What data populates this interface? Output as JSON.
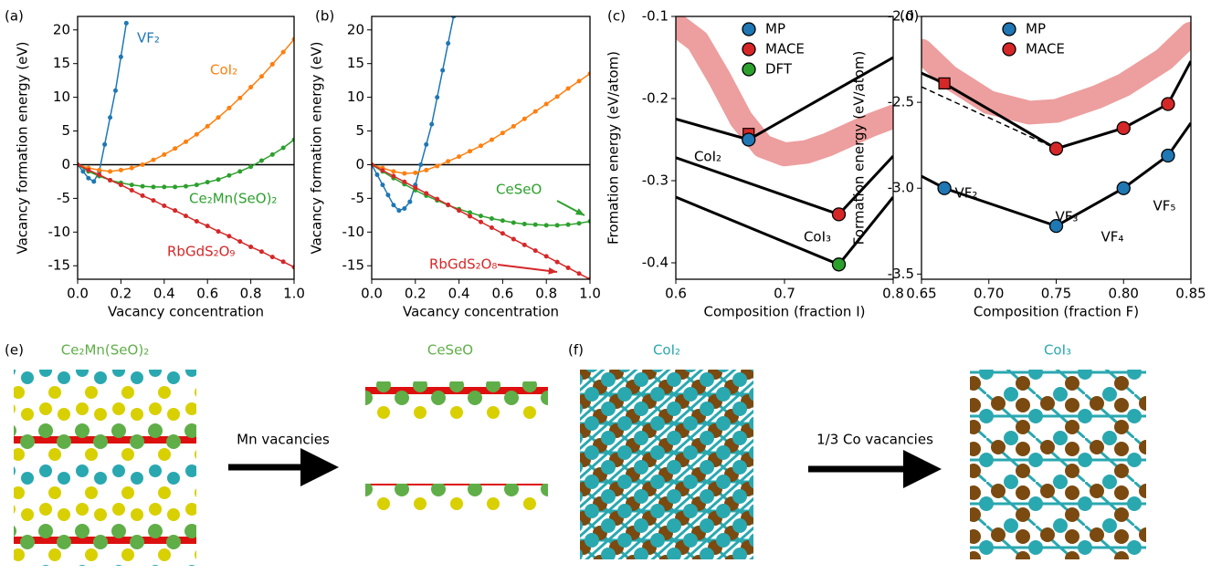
{
  "chart_data": [
    {
      "type": "line",
      "panel": "(a)",
      "xlabel": "Vacancy concentration",
      "ylabel": "Vacancy formation energy (eV)",
      "xlim": [
        0,
        1
      ],
      "ylim": [
        -17,
        22
      ],
      "xticks": [
        {
          "value": 0,
          "label": "0.0"
        },
        0.2,
        0.4,
        0.6,
        0.8,
        {
          "value": 1,
          "label": "1.0"
        }
      ],
      "yticks": [
        -15,
        -10,
        -5,
        0,
        5,
        10,
        15,
        20
      ],
      "hlines": [
        0
      ],
      "series": [
        {
          "name": "VF₂",
          "color": "#1f77b4",
          "style": "line-dots",
          "x": [
            0,
            0.025,
            0.05,
            0.075,
            0.1,
            0.125,
            0.15,
            0.175,
            0.2,
            0.225
          ],
          "values": [
            0,
            -1,
            -2,
            -2.5,
            -1,
            3,
            7,
            11,
            16,
            21
          ]
        },
        {
          "name": "CoI₂",
          "color": "#ff7f0e",
          "style": "line-dots",
          "x": [
            0,
            0.05,
            0.1,
            0.15,
            0.2,
            0.25,
            0.3,
            0.35,
            0.4,
            0.45,
            0.5,
            0.55,
            0.6,
            0.65,
            0.7,
            0.75,
            0.8,
            0.85,
            0.9,
            0.95,
            1
          ],
          "values": [
            0,
            -0.5,
            -0.8,
            -1,
            -0.8,
            -0.5,
            0,
            0.7,
            1.5,
            2.4,
            3.4,
            4.5,
            5.7,
            7,
            8.4,
            9.9,
            11.5,
            13.1,
            14.9,
            16.7,
            18.6
          ]
        },
        {
          "name": "Ce₂Mn(SeO)₂",
          "color": "#2ca02c",
          "style": "line-dots",
          "x": [
            0,
            0.05,
            0.1,
            0.15,
            0.2,
            0.25,
            0.3,
            0.35,
            0.4,
            0.45,
            0.5,
            0.55,
            0.6,
            0.65,
            0.7,
            0.75,
            0.8,
            0.85,
            0.9,
            0.95,
            1
          ],
          "values": [
            0,
            -1,
            -1.7,
            -2.3,
            -2.7,
            -3,
            -3.2,
            -3.3,
            -3.3,
            -3.3,
            -3.2,
            -3,
            -2.6,
            -2.2,
            -1.6,
            -1,
            -0.3,
            0.6,
            1.5,
            2.5,
            3.7
          ]
        },
        {
          "name": "RbGdS₂O₉",
          "color": "#d62728",
          "style": "line-dots",
          "x": [
            0,
            0.05,
            0.1,
            0.15,
            0.2,
            0.25,
            0.3,
            0.35,
            0.4,
            0.45,
            0.5,
            0.55,
            0.6,
            0.65,
            0.7,
            0.75,
            0.8,
            0.85,
            0.9,
            0.95,
            1
          ],
          "values": [
            0,
            -0.8,
            -1.5,
            -2.3,
            -3,
            -3.8,
            -4.6,
            -5.3,
            -6.1,
            -6.8,
            -7.6,
            -8.4,
            -9.1,
            -9.9,
            -10.6,
            -11.4,
            -12.2,
            -12.9,
            -13.7,
            -14.4,
            -15.2
          ]
        }
      ]
    },
    {
      "type": "line",
      "panel": "(b)",
      "xlabel": "Vacancy concentration",
      "ylabel": "Vacancy formation energy (eV)",
      "xlim": [
        0,
        1
      ],
      "ylim": [
        -17,
        22
      ],
      "xticks": [
        {
          "value": 0,
          "label": "0.0"
        },
        0.2,
        0.4,
        0.6,
        0.8,
        {
          "value": 1,
          "label": "1.0"
        }
      ],
      "yticks": [
        -15,
        -10,
        -5,
        0,
        5,
        10,
        15,
        20
      ],
      "hlines": [
        0
      ],
      "series": [
        {
          "color": "#1f77b4",
          "style": "line-dots",
          "x": [
            0,
            0.025,
            0.05,
            0.075,
            0.1,
            0.125,
            0.15,
            0.175,
            0.2,
            0.225,
            0.25,
            0.275,
            0.3,
            0.325,
            0.35,
            0.375
          ],
          "values": [
            0,
            -1.5,
            -3,
            -4.5,
            -6,
            -6.8,
            -6.5,
            -5.5,
            -3,
            0,
            3,
            6,
            10,
            14,
            18,
            22
          ]
        },
        {
          "color": "#ff7f0e",
          "style": "line-dots",
          "x": [
            0,
            0.05,
            0.1,
            0.15,
            0.2,
            0.25,
            0.3,
            0.35,
            0.4,
            0.45,
            0.5,
            0.55,
            0.6,
            0.65,
            0.7,
            0.75,
            0.8,
            0.85,
            0.9,
            0.95,
            1
          ],
          "values": [
            0,
            -0.5,
            -1,
            -1.3,
            -1.2,
            -0.8,
            -0.2,
            0.5,
            1.2,
            2,
            2.8,
            3.7,
            4.7,
            5.7,
            6.8,
            7.9,
            9,
            10.1,
            11.3,
            12.4,
            13.5
          ]
        },
        {
          "name": "CeSeO",
          "color": "#2ca02c",
          "style": "line-dots",
          "x": [
            0,
            0.05,
            0.1,
            0.15,
            0.2,
            0.25,
            0.3,
            0.35,
            0.4,
            0.45,
            0.5,
            0.55,
            0.6,
            0.65,
            0.7,
            0.75,
            0.8,
            0.85,
            0.9,
            0.95,
            1
          ],
          "values": [
            0,
            -1,
            -2,
            -2.9,
            -3.8,
            -4.6,
            -5.3,
            -6,
            -6.6,
            -7.1,
            -7.6,
            -8,
            -8.3,
            -8.6,
            -8.8,
            -8.9,
            -9,
            -9,
            -8.9,
            -8.7,
            -8.4
          ]
        },
        {
          "name": "RbGdS₂O₈",
          "color": "#d62728",
          "style": "line-dots",
          "x": [
            0,
            0.05,
            0.1,
            0.15,
            0.2,
            0.25,
            0.3,
            0.35,
            0.4,
            0.45,
            0.5,
            0.55,
            0.6,
            0.65,
            0.7,
            0.75,
            0.8,
            0.85,
            0.9,
            0.95,
            1
          ],
          "values": [
            0,
            -0.85,
            -1.7,
            -2.55,
            -3.4,
            -4.25,
            -5.1,
            -5.95,
            -6.8,
            -7.65,
            -8.5,
            -9.35,
            -10.2,
            -11.05,
            -11.9,
            -12.75,
            -13.6,
            -14.45,
            -15.3,
            -16.15,
            -17
          ]
        }
      ]
    },
    {
      "type": "scatter",
      "panel": "(c)",
      "xlabel": "Composition (fraction I)",
      "ylabel": "Fromation energy (eV/atom)",
      "xlim": [
        0.6,
        0.8
      ],
      "ylim": [
        -0.42,
        -0.1
      ],
      "xticks": [
        0.6,
        0.7,
        0.8
      ],
      "yticks": [
        -0.4,
        -0.3,
        -0.2,
        -0.1
      ],
      "legend": "upper center",
      "annotations": [
        "CoI₂",
        "CoI₃"
      ],
      "series": [
        {
          "color": "#d62728",
          "style": "band",
          "x": [
            0.6,
            0.62,
            0.64,
            0.66,
            0.68,
            0.7,
            0.72,
            0.74,
            0.76,
            0.78,
            0.8
          ],
          "values": [
            -0.11,
            -0.13,
            -0.175,
            -0.225,
            -0.258,
            -0.268,
            -0.265,
            -0.256,
            -0.244,
            -0.232,
            -0.222
          ]
        },
        {
          "color": "#000000",
          "style": "line",
          "x": [
            0.6,
            0.667,
            0.8
          ],
          "values": [
            -0.225,
            -0.25,
            -0.15
          ]
        },
        {
          "color": "#000000",
          "style": "line",
          "x": [
            0.6,
            0.75,
            0.8
          ],
          "values": [
            -0.272,
            -0.341,
            -0.27
          ]
        },
        {
          "color": "#000000",
          "style": "line",
          "x": [
            0.6,
            0.75,
            0.8
          ],
          "values": [
            -0.32,
            -0.402,
            -0.32
          ]
        },
        {
          "color": "#d62728",
          "style": "points",
          "marker": "square",
          "x": [
            0.667
          ],
          "values": [
            -0.243
          ]
        },
        {
          "name": "MP",
          "color": "#1f77b4",
          "style": "points",
          "x": [
            0.667
          ],
          "values": [
            -0.25
          ]
        },
        {
          "name": "MACE",
          "color": "#d62728",
          "style": "points",
          "x": [
            0.75
          ],
          "values": [
            -0.341
          ]
        },
        {
          "name": "DFT",
          "color": "#2ca02c",
          "style": "points",
          "x": [
            0.75
          ],
          "values": [
            -0.402
          ]
        }
      ]
    },
    {
      "type": "scatter",
      "panel": "(d)",
      "xlabel": "Composition (fraction F)",
      "ylabel": "Formation energy (eV/atom)",
      "xlim": [
        0.65,
        0.85
      ],
      "ylim": [
        -3.53,
        -2.0
      ],
      "xticks": [
        0.65,
        {
          "value": 0.7,
          "label": "0.70"
        },
        0.75,
        {
          "value": 0.8,
          "label": "0.80"
        },
        0.85
      ],
      "yticks": [
        -3.5,
        {
          "value": -3,
          "label": "-3.0"
        },
        -2.5,
        {
          "value": -2,
          "label": "-2.0"
        }
      ],
      "legend": "upper center",
      "annotations": [
        "VF₂",
        "VF₃",
        "VF₄",
        "VF₅"
      ],
      "series": [
        {
          "color": "#d62728",
          "style": "band",
          "x": [
            0.65,
            0.67,
            0.7,
            0.73,
            0.75,
            0.78,
            0.8,
            0.83,
            0.85
          ],
          "values": [
            -2.2,
            -2.35,
            -2.5,
            -2.56,
            -2.55,
            -2.47,
            -2.4,
            -2.25,
            -2.1
          ]
        },
        {
          "color": "#000000",
          "style": "line",
          "x": [
            0.65,
            0.667,
            0.75,
            0.8,
            0.833,
            0.85
          ],
          "values": [
            -2.93,
            -3,
            -3.22,
            -3,
            -2.81,
            -2.62
          ]
        },
        {
          "color": "#000000",
          "style": "line",
          "x": [
            0.65,
            0.667,
            0.75,
            0.8,
            0.833,
            0.85
          ],
          "values": [
            -2.33,
            -2.39,
            -2.77,
            -2.65,
            -2.51,
            -2.26
          ]
        },
        {
          "color": "#000000",
          "style": "dashed",
          "x": [
            0.65,
            0.75
          ],
          "values": [
            -2.41,
            -2.77
          ]
        },
        {
          "color": "#d62728",
          "style": "points",
          "marker": "square",
          "x": [
            0.667
          ],
          "values": [
            -2.39
          ]
        },
        {
          "name": "MP",
          "color": "#1f77b4",
          "style": "points",
          "x": [
            0.667,
            0.75,
            0.8,
            0.833
          ],
          "values": [
            -3,
            -3.22,
            -3,
            -2.81
          ]
        },
        {
          "name": "MACE",
          "color": "#d62728",
          "style": "points",
          "x": [
            0.75,
            0.8,
            0.833
          ],
          "values": [
            -2.77,
            -2.65,
            -2.51
          ]
        }
      ]
    }
  ],
  "structures": {
    "e": {
      "label": "(e)",
      "left_title": "Ce₂Mn(SeO)₂",
      "arrow_text": "Mn vacancies",
      "right_title": "CeSeO"
    },
    "f": {
      "label": "(f)",
      "left_title": "CoI₂",
      "arrow_text": "1/3 Co vacancies",
      "right_title": "CoI₃"
    }
  }
}
